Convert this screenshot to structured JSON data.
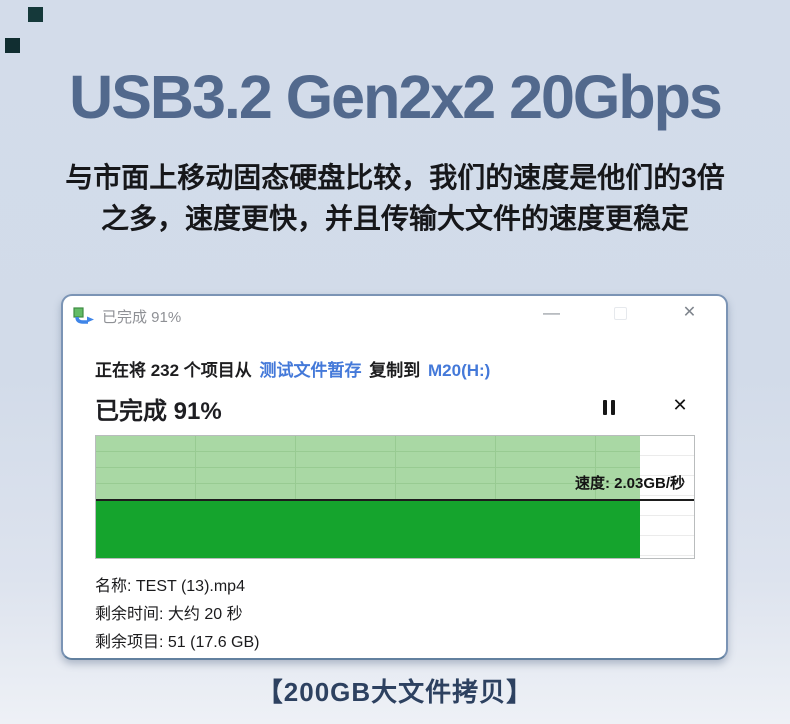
{
  "banner": {
    "title": "USB3.2 Gen2x2 20Gbps",
    "subtitle_line1": "与市面上移动固态硬盘比较，我们的速度是他们的3倍",
    "subtitle_line2": "之多，速度更快，并且传输大文件的速度更稳定",
    "caption": "【200GB大文件拷贝】",
    "colors": {
      "background": "#d3dcea",
      "title_blue": "#52698d",
      "caption_navy": "#2d4160",
      "link_blue": "#4479d9",
      "light_green": "#a9d8a4",
      "dark_green": "#15a42d"
    }
  },
  "dialog": {
    "titlebar": {
      "title": "已完成 91%",
      "minimize_glyph": "—",
      "close_glyph": "✕"
    },
    "copy_line": {
      "prefix": "正在将 232 个项目从",
      "source": "测试文件暂存",
      "action": "复制到",
      "destination": "M20(H:)"
    },
    "progress_heading": "已完成 91%",
    "cancel_glyph": "✕",
    "chart": {
      "speed_label": "速度: 2.03GB/秒",
      "progress_percent": 91
    },
    "details": [
      "名称: TEST (13).mp4",
      "剩余时间: 大约 20 秒",
      "剩余项目: 51 (17.6 GB)"
    ]
  }
}
